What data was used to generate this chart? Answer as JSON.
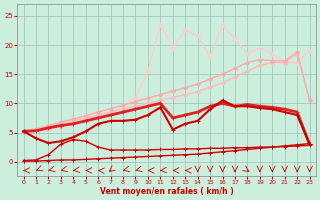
{
  "xlabel": "Vent moyen/en rafales ( km/h )",
  "xlim": [
    -0.5,
    23.5
  ],
  "ylim": [
    -2.5,
    27
  ],
  "yticks": [
    0,
    5,
    10,
    15,
    20,
    25
  ],
  "xticks": [
    0,
    1,
    2,
    3,
    4,
    5,
    6,
    7,
    8,
    9,
    10,
    11,
    12,
    13,
    14,
    15,
    16,
    17,
    18,
    19,
    20,
    21,
    22,
    23
  ],
  "bg_color": "#cceedd",
  "grid_color": "#99bbbb",
  "series": [
    {
      "x": [
        0,
        1,
        2,
        3,
        4,
        5,
        6,
        7,
        8,
        9,
        10,
        11,
        12,
        13,
        14,
        15,
        16,
        17,
        18,
        19,
        20,
        21,
        22,
        23
      ],
      "y": [
        5.2,
        5.5,
        6.0,
        6.5,
        7.0,
        7.5,
        8.0,
        8.5,
        9.0,
        9.5,
        10.0,
        10.5,
        11.0,
        11.5,
        12.0,
        12.8,
        13.5,
        14.5,
        15.5,
        16.5,
        17.0,
        17.0,
        18.5,
        10.5
      ],
      "color": "#ffbbbb",
      "lw": 1.0,
      "marker": "D",
      "ms": 2,
      "zorder": 3
    },
    {
      "x": [
        0,
        1,
        2,
        3,
        4,
        5,
        6,
        7,
        8,
        9,
        10,
        11,
        12,
        13,
        14,
        15,
        16,
        17,
        18,
        19,
        20,
        21,
        22,
        23
      ],
      "y": [
        5.3,
        5.6,
        6.2,
        6.8,
        7.3,
        7.9,
        8.5,
        9.1,
        9.7,
        10.3,
        10.9,
        11.5,
        12.1,
        12.7,
        13.3,
        14.2,
        15.0,
        16.0,
        17.0,
        17.5,
        17.3,
        17.3,
        18.8,
        10.5
      ],
      "color": "#ffaaaa",
      "lw": 1.0,
      "marker": "D",
      "ms": 2,
      "zorder": 3
    },
    {
      "x": [
        2,
        3,
        4,
        5,
        6,
        7,
        8,
        9,
        10,
        11,
        12,
        13,
        14,
        15,
        16,
        17,
        18,
        19,
        20,
        21,
        22,
        23
      ],
      "y": [
        5.5,
        6.0,
        6.5,
        7.2,
        7.8,
        8.5,
        9.5,
        11.0,
        15.5,
        23.5,
        19.5,
        22.5,
        21.5,
        18.0,
        23.5,
        21.0,
        18.5,
        19.5,
        18.5,
        17.0,
        17.0,
        19.0
      ],
      "color": "#ffcccc",
      "lw": 1.0,
      "marker": "D",
      "ms": 2,
      "zorder": 2
    },
    {
      "x": [
        0,
        1,
        2,
        3,
        4,
        5,
        6,
        7,
        8,
        9,
        10,
        11,
        12,
        13,
        14,
        15,
        16,
        17,
        18,
        19,
        20,
        21,
        22,
        23
      ],
      "y": [
        0.1,
        0.1,
        0.2,
        0.3,
        0.3,
        0.4,
        0.5,
        0.6,
        0.7,
        0.8,
        0.9,
        1.0,
        1.1,
        1.2,
        1.3,
        1.5,
        1.7,
        1.9,
        2.1,
        2.3,
        2.5,
        2.7,
        2.9,
        3.1
      ],
      "color": "#cc0000",
      "lw": 1.0,
      "marker": "+",
      "ms": 3,
      "zorder": 6
    },
    {
      "x": [
        0,
        1,
        2,
        3,
        4,
        5,
        6,
        7,
        8,
        9,
        10,
        11,
        12,
        13,
        14,
        15,
        16,
        17,
        18,
        19,
        20,
        21,
        22,
        23
      ],
      "y": [
        0.2,
        0.3,
        1.2,
        3.0,
        3.8,
        3.5,
        2.5,
        2.0,
        2.0,
        2.0,
        2.0,
        2.1,
        2.1,
        2.2,
        2.2,
        2.3,
        2.3,
        2.4,
        2.4,
        2.5,
        2.5,
        2.6,
        2.7,
        2.8
      ],
      "color": "#cc0000",
      "lw": 1.0,
      "marker": "+",
      "ms": 3,
      "zorder": 6
    },
    {
      "x": [
        0,
        1,
        2,
        3,
        4,
        5,
        6,
        7,
        8,
        9,
        10,
        11,
        12,
        13,
        14,
        15,
        16,
        17,
        18,
        19,
        20,
        21,
        22,
        23
      ],
      "y": [
        5.2,
        4.0,
        3.2,
        3.5,
        4.2,
        5.2,
        6.5,
        7.0,
        7.0,
        7.2,
        8.0,
        9.3,
        5.5,
        6.5,
        7.0,
        9.0,
        10.5,
        9.5,
        9.5,
        9.2,
        9.0,
        8.5,
        8.0,
        3.0
      ],
      "color": "#cc0000",
      "lw": 1.5,
      "marker": "+",
      "ms": 3,
      "zorder": 7
    },
    {
      "x": [
        0,
        1,
        2,
        3,
        4,
        5,
        6,
        7,
        8,
        9,
        10,
        11,
        12,
        13,
        14,
        15,
        16,
        17,
        18,
        19,
        20,
        21,
        22,
        23
      ],
      "y": [
        5.2,
        5.3,
        5.8,
        6.2,
        6.5,
        7.0,
        7.5,
        8.0,
        8.5,
        9.0,
        9.5,
        10.0,
        7.5,
        8.0,
        8.5,
        9.5,
        10.0,
        9.5,
        9.8,
        9.5,
        9.3,
        9.0,
        8.5,
        3.0
      ],
      "color": "#dd2222",
      "lw": 2.0,
      "marker": "+",
      "ms": 3,
      "zorder": 5
    }
  ],
  "arrows": {
    "x": [
      0,
      1,
      2,
      3,
      4,
      5,
      6,
      7,
      8,
      9,
      10,
      11,
      12,
      13,
      14,
      15,
      16,
      17,
      18,
      19,
      20,
      21,
      22,
      23
    ],
    "angles": [
      180,
      210,
      200,
      200,
      190,
      180,
      175,
      230,
      200,
      200,
      180,
      185,
      180,
      180,
      270,
      270,
      270,
      270,
      315,
      270,
      270,
      270,
      270,
      270
    ],
    "color": "#cc0000"
  }
}
